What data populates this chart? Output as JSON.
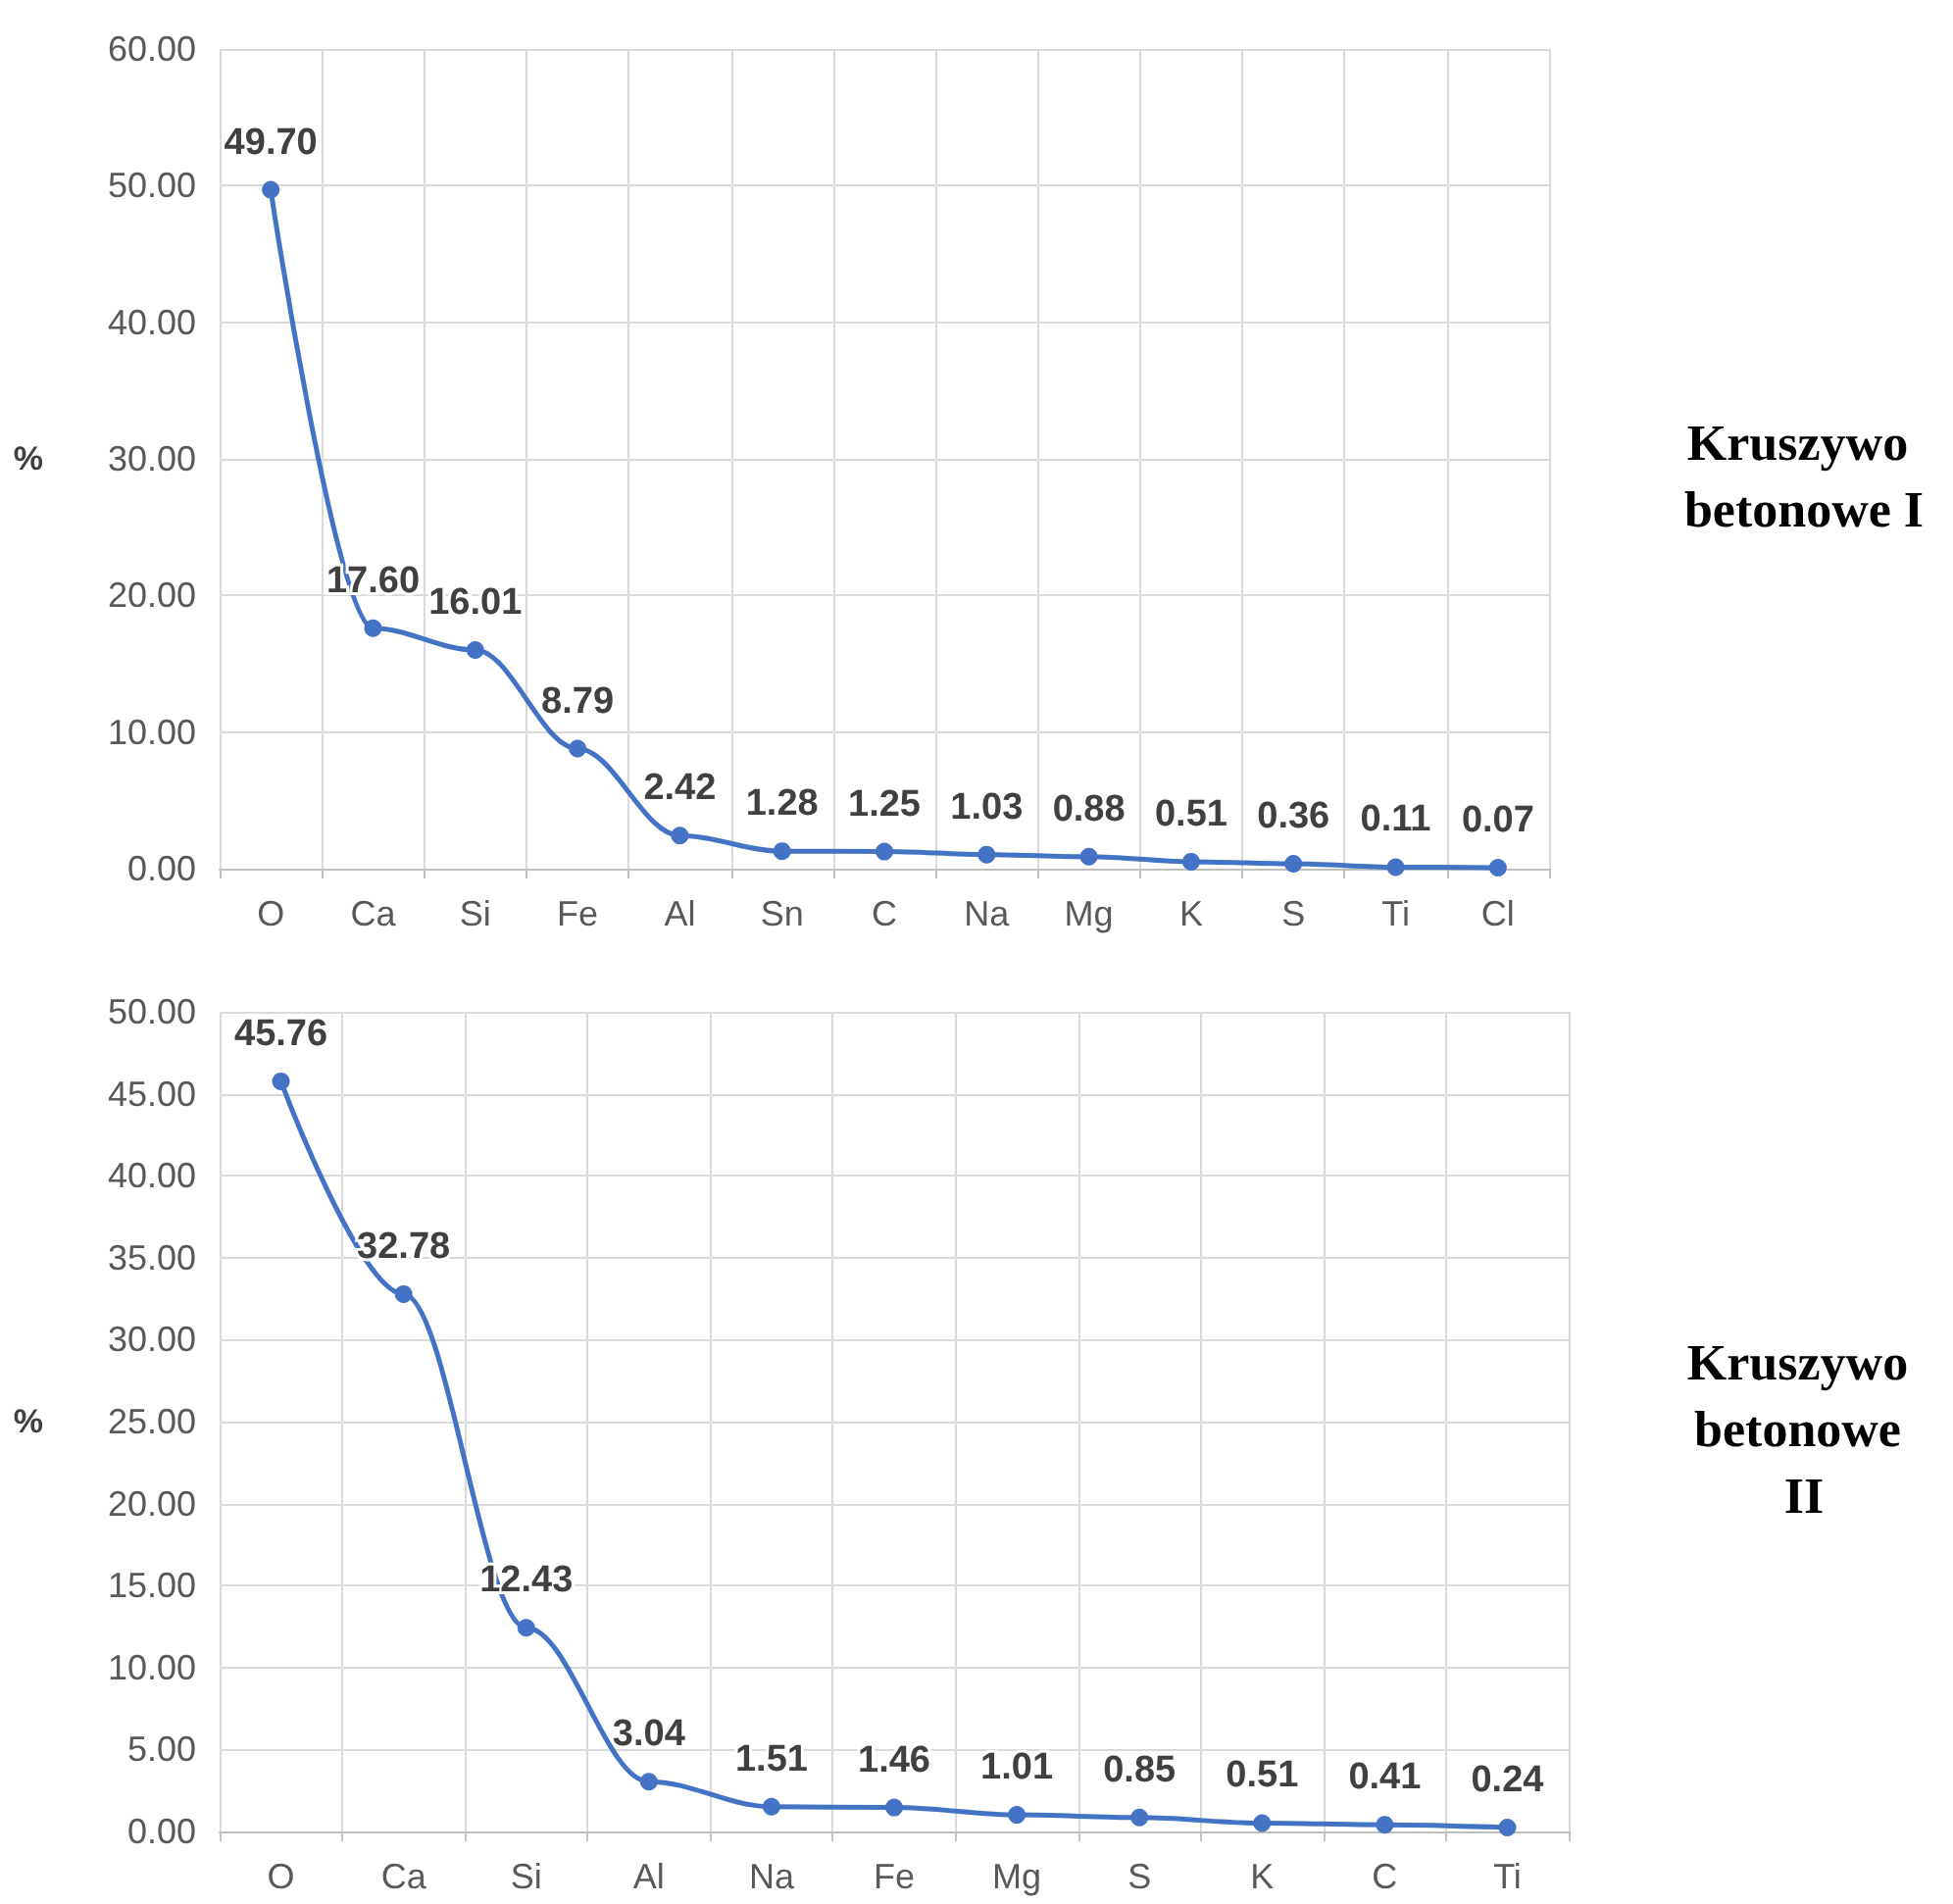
{
  "chart_data": [
    {
      "type": "line",
      "annotations": [
        "Kruszywo betonowe I"
      ],
      "ylabel": "%",
      "categories": [
        "O",
        "Ca",
        "Si",
        "Fe",
        "Al",
        "Sn",
        "C",
        "Na",
        "Mg",
        "K",
        "S",
        "Ti",
        "Cl"
      ],
      "series": [
        {
          "color": "#4472c4",
          "values": [
            49.7,
            17.6,
            16.01,
            8.79,
            2.42,
            1.28,
            1.25,
            1.03,
            0.88,
            0.51,
            0.36,
            0.11,
            0.07
          ],
          "value_labels": [
            "49.70",
            "17.60",
            "16.01",
            "8.79",
            "2.42",
            "1.28",
            "1.25",
            "1.03",
            "0.88",
            "0.51",
            "0.36",
            "0.11",
            "0.07"
          ]
        }
      ],
      "ylim": [
        0,
        60
      ],
      "yticks": [
        {
          "value": 0,
          "label": "0.00"
        },
        {
          "value": 10,
          "label": "10.00"
        },
        {
          "value": 20,
          "label": "20.00"
        },
        {
          "value": 30,
          "label": "30.00"
        },
        {
          "value": 40,
          "label": "40.00"
        },
        {
          "value": 50,
          "label": "50.00"
        },
        {
          "value": 60,
          "label": "60.00"
        }
      ],
      "grid": true,
      "marker": "circle"
    },
    {
      "type": "line",
      "annotations": [
        "Kruszywo betonowe II"
      ],
      "ylabel": "%",
      "categories": [
        "O",
        "Ca",
        "Si",
        "Al",
        "Na",
        "Fe",
        "Mg",
        "S",
        "K",
        "C",
        "Ti"
      ],
      "series": [
        {
          "color": "#4472c4",
          "values": [
            45.76,
            32.78,
            12.43,
            3.04,
            1.51,
            1.46,
            1.01,
            0.85,
            0.51,
            0.41,
            0.24
          ],
          "value_labels": [
            "45.76",
            "32.78",
            "12.43",
            "3.04",
            "1.51",
            "1.46",
            "1.01",
            "0.85",
            "0.51",
            "0.41",
            "0.24"
          ]
        }
      ],
      "ylim": [
        0,
        50
      ],
      "yticks": [
        {
          "value": 0,
          "label": "0.00"
        },
        {
          "value": 5,
          "label": "5.00"
        },
        {
          "value": 10,
          "label": "10.00"
        },
        {
          "value": 15,
          "label": "15.00"
        },
        {
          "value": 20,
          "label": "20.00"
        },
        {
          "value": 25,
          "label": "25.00"
        },
        {
          "value": 30,
          "label": "30.00"
        },
        {
          "value": 35,
          "label": "35.00"
        },
        {
          "value": 40,
          "label": "40.00"
        },
        {
          "value": 45,
          "label": "45.00"
        },
        {
          "value": 50,
          "label": "50.00"
        }
      ],
      "grid": true,
      "marker": "circle"
    }
  ]
}
